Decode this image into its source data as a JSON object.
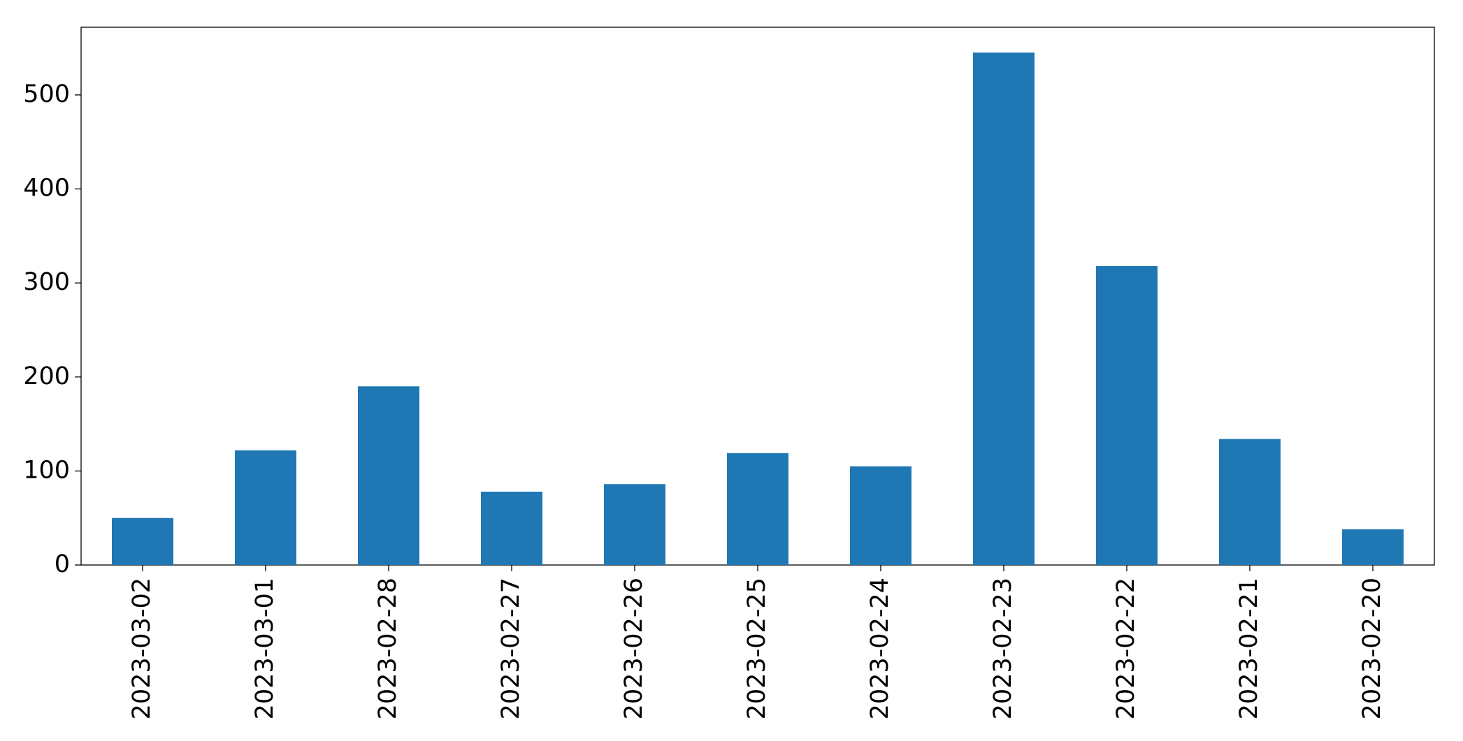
{
  "chart_data": {
    "type": "bar",
    "categories": [
      "2023-03-02",
      "2023-03-01",
      "2023-02-28",
      "2023-02-27",
      "2023-02-26",
      "2023-02-25",
      "2023-02-24",
      "2023-02-23",
      "2023-02-22",
      "2023-02-21",
      "2023-02-20"
    ],
    "values": [
      50,
      122,
      190,
      78,
      86,
      119,
      105,
      545,
      318,
      134,
      38
    ],
    "color": "#1f77b4",
    "ylim": [
      0,
      572
    ],
    "yticks": [
      0,
      100,
      200,
      300,
      400,
      500
    ],
    "grid": false
  }
}
